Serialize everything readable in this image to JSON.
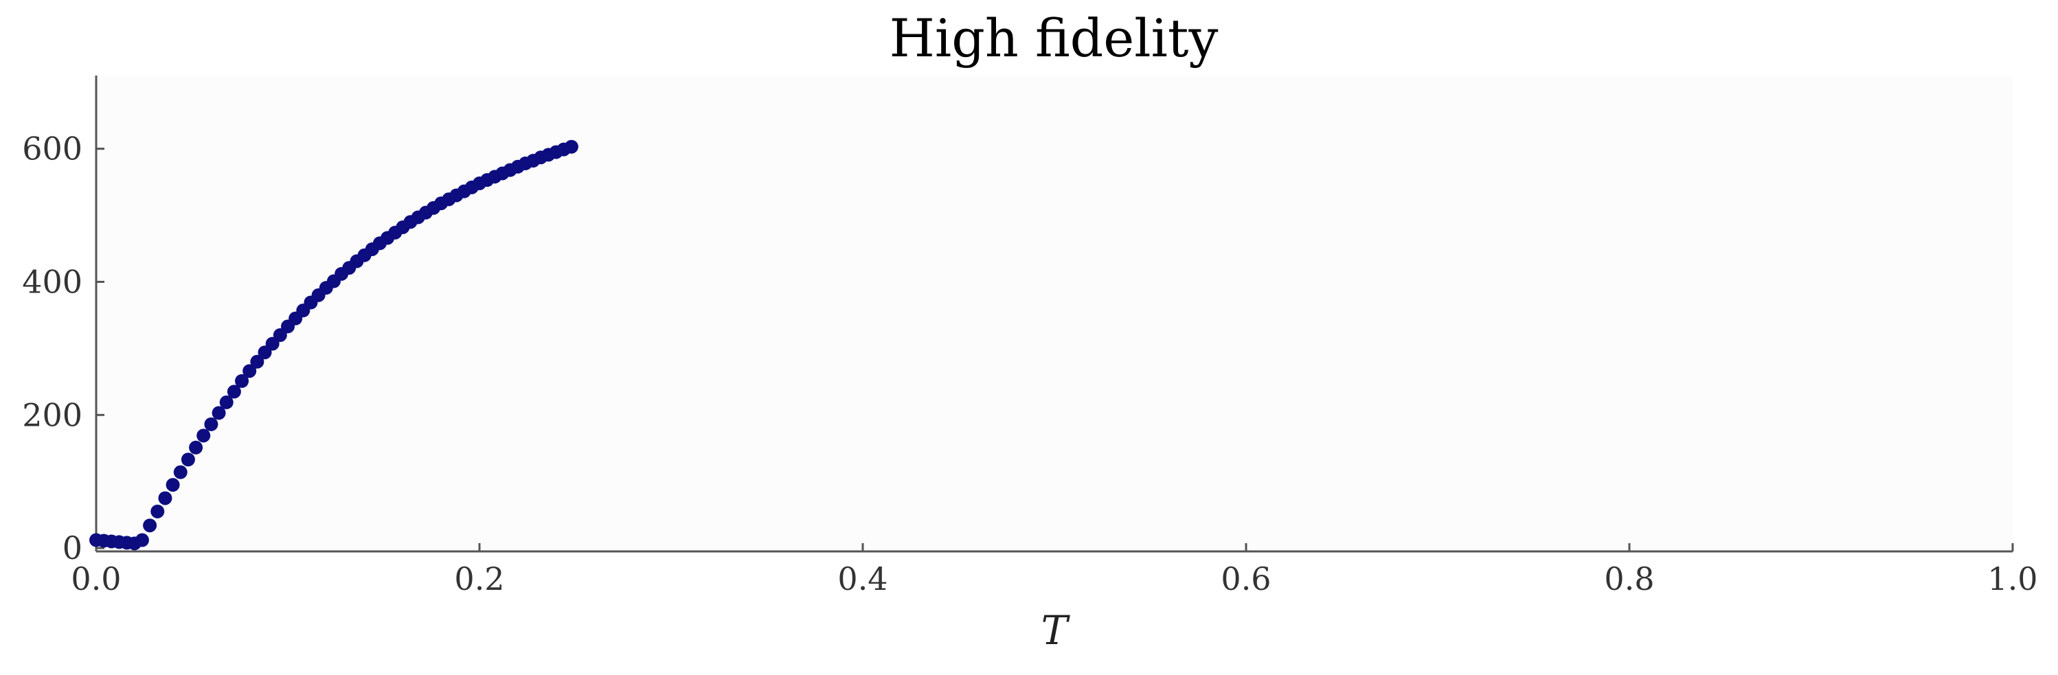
{
  "chart_data": {
    "type": "scatter",
    "title": "High fidelity",
    "xlabel": "T",
    "ylabel": "",
    "xlim": [
      0.0,
      1.0
    ],
    "ylim": [
      -5,
      710
    ],
    "x_ticks": [
      0.0,
      0.2,
      0.4,
      0.6,
      0.8,
      1.0
    ],
    "x_tick_labels": [
      "0.0",
      "0.2",
      "0.4",
      "0.6",
      "0.8",
      "1.0"
    ],
    "y_ticks": [
      0,
      200,
      400,
      600
    ],
    "y_tick_labels": [
      "0",
      "200",
      "400",
      "600"
    ],
    "grid": false,
    "legend": "none",
    "series": [
      {
        "color": "#0d0d80",
        "x": [
          0.0,
          0.004,
          0.008,
          0.012,
          0.016,
          0.02,
          0.024,
          0.028,
          0.032,
          0.036,
          0.04,
          0.044,
          0.048,
          0.052,
          0.056,
          0.06,
          0.064,
          0.068,
          0.072,
          0.076,
          0.08,
          0.084,
          0.088,
          0.092,
          0.096,
          0.1,
          0.104,
          0.108,
          0.112,
          0.116,
          0.12,
          0.124,
          0.128,
          0.132,
          0.136,
          0.14,
          0.144,
          0.148,
          0.152,
          0.156,
          0.16,
          0.164,
          0.168,
          0.172,
          0.176,
          0.18,
          0.184,
          0.188,
          0.192,
          0.196,
          0.2,
          0.204,
          0.208,
          0.212,
          0.216,
          0.22,
          0.224,
          0.228,
          0.232,
          0.236,
          0.24,
          0.244,
          0.248
        ],
        "y": [
          12,
          11,
          10,
          9,
          8,
          7,
          12,
          34,
          55,
          75,
          95,
          114,
          133,
          151,
          169,
          186,
          203,
          219,
          235,
          251,
          266,
          280,
          294,
          307,
          320,
          333,
          345,
          357,
          369,
          380,
          391,
          401,
          412,
          421,
          431,
          440,
          449,
          458,
          466,
          474,
          482,
          490,
          497,
          504,
          511,
          518,
          524,
          530,
          536,
          542,
          548,
          553,
          558,
          563,
          568,
          573,
          578,
          582,
          587,
          591,
          595,
          599,
          603
        ]
      }
    ]
  }
}
